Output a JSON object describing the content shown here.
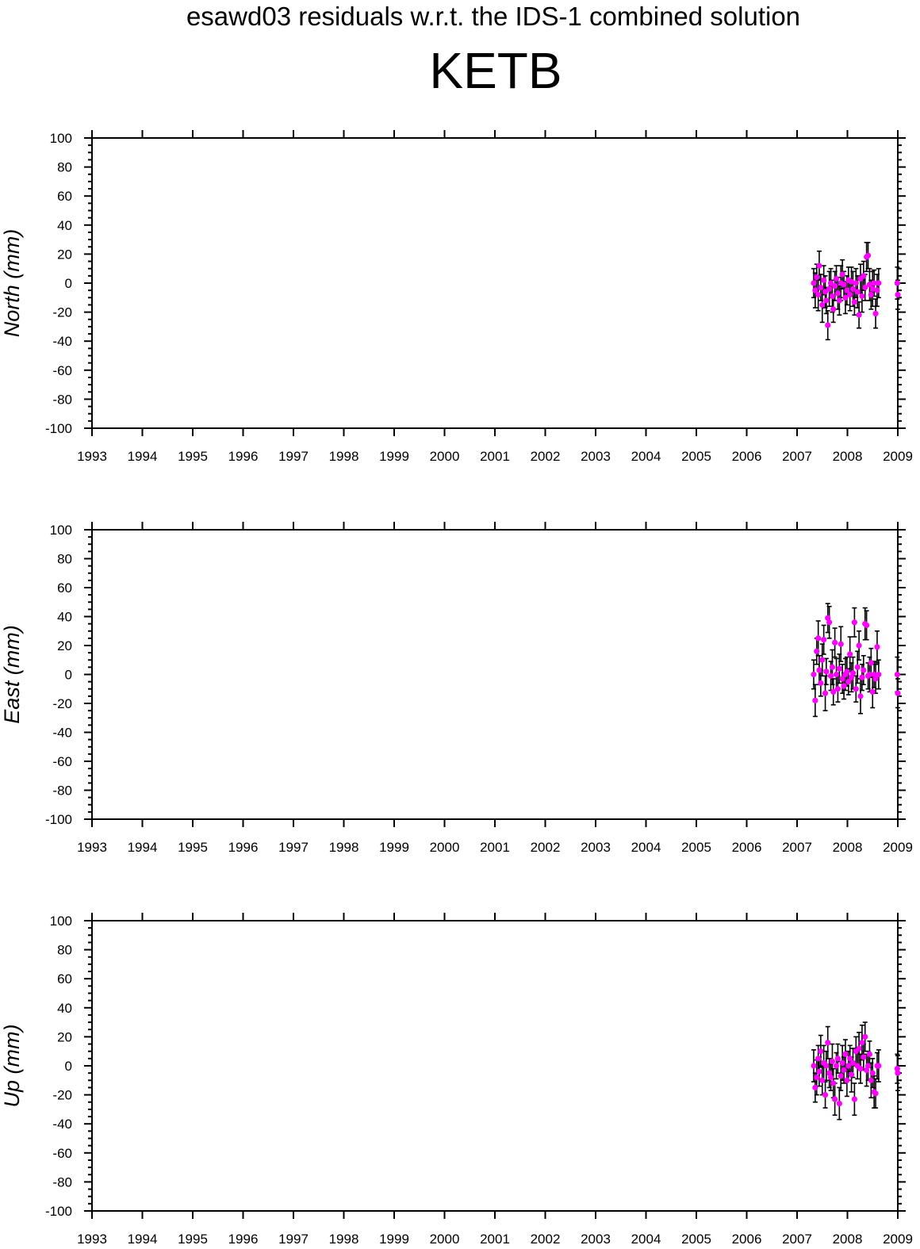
{
  "header": {
    "suptitle": "esawd03 residuals w.r.t. the IDS-1 combined solution",
    "title": "KETB"
  },
  "colors": {
    "marker": "#ff00ff",
    "errorbar": "#000000",
    "axis": "#000000"
  },
  "chart_data": [
    {
      "type": "scatter",
      "ylabel": "North (mm)",
      "xlim": [
        1993,
        2009
      ],
      "ylim": [
        -100,
        100
      ],
      "x_ticks": [
        "1993",
        "1994",
        "1995",
        "1996",
        "1997",
        "1998",
        "1999",
        "2000",
        "2001",
        "2002",
        "2003",
        "2004",
        "2005",
        "2006",
        "2007",
        "2008",
        "2009"
      ],
      "y_ticks": [
        "100",
        "80",
        "60",
        "40",
        "20",
        "0",
        "-20",
        "-40",
        "-60",
        "-80",
        "-100"
      ],
      "grid": false,
      "series": [
        {
          "x": [
            2007.33,
            2007.36,
            2007.39,
            2007.42,
            2007.44,
            2007.47,
            2007.5,
            2007.53,
            2007.56,
            2007.58,
            2007.61,
            2007.64,
            2007.67,
            2007.7,
            2007.72,
            2007.75,
            2007.78,
            2007.81,
            2007.84,
            2007.87,
            2007.9,
            2007.93,
            2007.96,
            2007.99,
            2008.02,
            2008.05,
            2008.08,
            2008.11,
            2008.14,
            2008.17,
            2008.2,
            2008.23,
            2008.26,
            2008.29,
            2008.32,
            2008.35,
            2008.38,
            2008.41,
            2008.44,
            2008.47,
            2008.5,
            2008.53,
            2008.56,
            2008.59,
            2008.62,
            2008.99,
            2009.0
          ],
          "y": [
            0,
            -5,
            4,
            -8,
            12,
            -3,
            -15,
            2,
            -6,
            -12,
            -29,
            -4,
            0,
            -9,
            -18,
            -2,
            3,
            -7,
            -12,
            0,
            6,
            -1,
            -10,
            -5,
            2,
            -8,
            1,
            -4,
            -13,
            0,
            -6,
            -22,
            3,
            -9,
            5,
            -3,
            18,
            19,
            -1,
            -8,
            -4,
            0,
            -21,
            -5,
            0,
            0,
            -8
          ],
          "err": [
            10,
            12,
            9,
            11,
            10,
            9,
            12,
            10,
            11,
            9,
            10,
            12,
            10,
            11,
            9,
            10,
            9,
            11,
            10,
            12,
            10,
            9,
            11,
            10,
            9,
            11,
            10,
            12,
            9,
            10,
            11,
            9,
            10,
            11,
            10,
            9,
            10,
            9,
            11,
            10,
            12,
            9,
            10,
            11,
            10,
            11,
            10
          ]
        }
      ]
    },
    {
      "type": "scatter",
      "ylabel": "East (mm)",
      "xlim": [
        1993,
        2009
      ],
      "ylim": [
        -100,
        100
      ],
      "x_ticks": [
        "1993",
        "1994",
        "1995",
        "1996",
        "1997",
        "1998",
        "1999",
        "2000",
        "2001",
        "2002",
        "2003",
        "2004",
        "2005",
        "2006",
        "2007",
        "2008",
        "2009"
      ],
      "y_ticks": [
        "100",
        "80",
        "60",
        "40",
        "20",
        "0",
        "-20",
        "-40",
        "-60",
        "-80",
        "-100"
      ],
      "grid": false,
      "series": [
        {
          "x": [
            2007.33,
            2007.36,
            2007.39,
            2007.42,
            2007.44,
            2007.47,
            2007.5,
            2007.53,
            2007.56,
            2007.58,
            2007.61,
            2007.64,
            2007.67,
            2007.7,
            2007.72,
            2007.75,
            2007.78,
            2007.81,
            2007.84,
            2007.87,
            2007.9,
            2007.93,
            2007.96,
            2007.99,
            2008.02,
            2008.05,
            2008.08,
            2008.11,
            2008.14,
            2008.17,
            2008.2,
            2008.23,
            2008.26,
            2008.29,
            2008.32,
            2008.35,
            2008.38,
            2008.41,
            2008.44,
            2008.47,
            2008.5,
            2008.53,
            2008.56,
            2008.59,
            2008.62,
            2008.99,
            2009.0
          ],
          "y": [
            0,
            -18,
            16,
            25,
            3,
            -6,
            10,
            24,
            -13,
            2,
            39,
            36,
            -1,
            5,
            -12,
            22,
            0,
            -10,
            4,
            21,
            -3,
            -8,
            0,
            2,
            -5,
            14,
            -2,
            1,
            36,
            -10,
            5,
            20,
            -15,
            -2,
            3,
            35,
            34,
            -1,
            0,
            8,
            -12,
            0,
            -3,
            19,
            0,
            0,
            -13
          ],
          "err": [
            10,
            11,
            9,
            12,
            10,
            9,
            11,
            10,
            12,
            9,
            10,
            11,
            10,
            12,
            9,
            10,
            11,
            9,
            10,
            12,
            10,
            9,
            11,
            10,
            9,
            12,
            10,
            11,
            10,
            9,
            11,
            10,
            12,
            9,
            10,
            11,
            10,
            9,
            12,
            10,
            11,
            9,
            10,
            11,
            10,
            12,
            10
          ]
        }
      ]
    },
    {
      "type": "scatter",
      "ylabel": "Up (mm)",
      "xlim": [
        1993,
        2009
      ],
      "ylim": [
        -100,
        100
      ],
      "x_ticks": [
        "1993",
        "1994",
        "1995",
        "1996",
        "1997",
        "1998",
        "1999",
        "2000",
        "2001",
        "2002",
        "2003",
        "2004",
        "2005",
        "2006",
        "2007",
        "2008",
        "2009"
      ],
      "y_ticks": [
        "100",
        "80",
        "60",
        "40",
        "20",
        "0",
        "-20",
        "-40",
        "-60",
        "-80",
        "-100"
      ],
      "grid": false,
      "series": [
        {
          "x": [
            2007.33,
            2007.36,
            2007.39,
            2007.42,
            2007.44,
            2007.47,
            2007.5,
            2007.53,
            2007.56,
            2007.58,
            2007.61,
            2007.64,
            2007.67,
            2007.7,
            2007.72,
            2007.75,
            2007.78,
            2007.81,
            2007.84,
            2007.87,
            2007.9,
            2007.93,
            2007.96,
            2007.99,
            2008.02,
            2008.05,
            2008.08,
            2008.11,
            2008.14,
            2008.17,
            2008.2,
            2008.23,
            2008.26,
            2008.29,
            2008.32,
            2008.35,
            2008.38,
            2008.41,
            2008.44,
            2008.47,
            2008.5,
            2008.53,
            2008.56,
            2008.59,
            2008.62,
            2008.99,
            2009.0
          ],
          "y": [
            0,
            -15,
            -8,
            5,
            -4,
            10,
            -10,
            2,
            -20,
            0,
            16,
            -5,
            -8,
            3,
            -12,
            -23,
            0,
            5,
            -26,
            -7,
            2,
            -3,
            8,
            -10,
            0,
            5,
            -6,
            2,
            -23,
            10,
            0,
            12,
            -2,
            16,
            6,
            20,
            -3,
            0,
            8,
            -10,
            -5,
            -18,
            -19,
            0,
            0,
            -2,
            -5
          ],
          "err": [
            11,
            10,
            12,
            9,
            10,
            11,
            10,
            12,
            9,
            10,
            11,
            10,
            9,
            12,
            10,
            11,
            9,
            10,
            11,
            10,
            12,
            9,
            10,
            11,
            10,
            9,
            12,
            10,
            11,
            10,
            9,
            11,
            10,
            12,
            9,
            10,
            11,
            10,
            9,
            12,
            10,
            11,
            10,
            9,
            11,
            10,
            12
          ]
        }
      ]
    }
  ]
}
